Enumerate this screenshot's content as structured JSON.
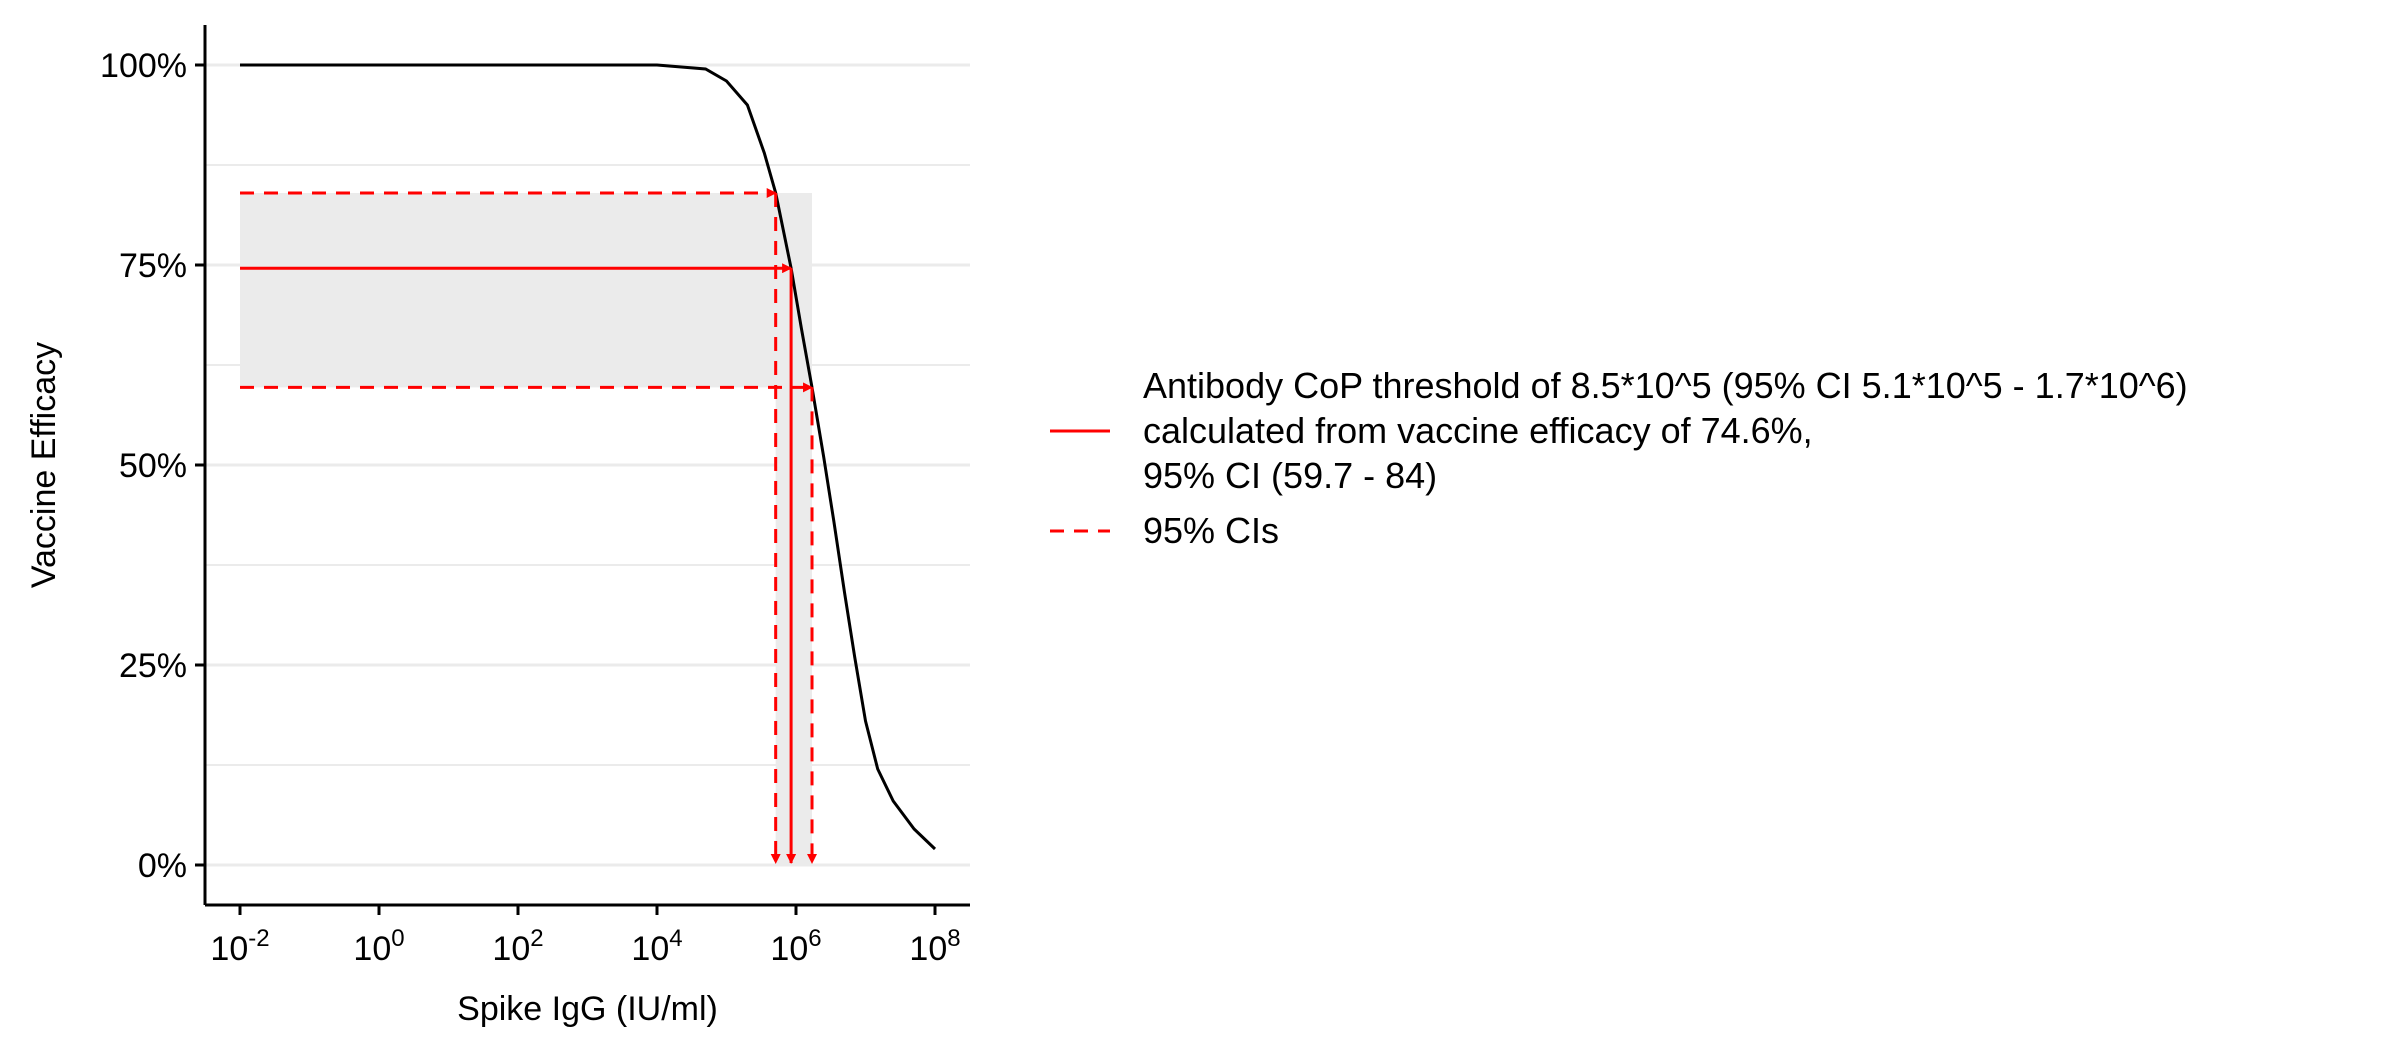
{
  "chart_data": {
    "type": "line",
    "xlabel": "Spike IgG (IU/ml)",
    "ylabel": "Vaccine Efficacy",
    "x_scale": "log10",
    "xlim": [
      0.01,
      100000000
    ],
    "ylim": [
      0,
      1
    ],
    "x_ticks": [
      {
        "value": 0.01,
        "base": "10",
        "exp": "-2"
      },
      {
        "value": 1,
        "base": "10",
        "exp": "0"
      },
      {
        "value": 100,
        "base": "10",
        "exp": "2"
      },
      {
        "value": 10000,
        "base": "10",
        "exp": "4"
      },
      {
        "value": 1000000,
        "base": "10",
        "exp": "6"
      },
      {
        "value": 100000000,
        "base": "10",
        "exp": "8"
      }
    ],
    "y_ticks": [
      {
        "value": 0,
        "label": "0%"
      },
      {
        "value": 0.25,
        "label": "25%"
      },
      {
        "value": 0.5,
        "label": "50%"
      },
      {
        "value": 0.75,
        "label": "75%"
      },
      {
        "value": 1,
        "label": "100%"
      }
    ],
    "grid": "horizontal major and minor",
    "efficacy_curve": {
      "color": "#000000",
      "points": [
        [
          0.01,
          1.0
        ],
        [
          10000,
          1.0
        ],
        [
          50000,
          0.995
        ],
        [
          100000,
          0.98
        ],
        [
          200000,
          0.95
        ],
        [
          350000,
          0.89
        ],
        [
          510000,
          0.84
        ],
        [
          850000,
          0.746
        ],
        [
          1200000,
          0.67
        ],
        [
          1700000,
          0.597
        ],
        [
          2500000,
          0.51
        ],
        [
          3500000,
          0.43
        ],
        [
          5000000,
          0.34
        ],
        [
          7000000,
          0.26
        ],
        [
          10000000,
          0.18
        ],
        [
          15000000,
          0.12
        ],
        [
          25000000,
          0.08
        ],
        [
          50000000,
          0.045
        ],
        [
          100000000,
          0.02
        ]
      ]
    },
    "threshold": {
      "x": 850000,
      "x_lower": 510000,
      "x_upper": 1700000,
      "efficacy": 0.746,
      "efficacy_lower": 0.597,
      "efficacy_upper": 0.84,
      "color": "#ff0000",
      "band_color": "#ebebeb"
    },
    "legend": {
      "placement": "right",
      "entries": [
        {
          "style": "solid",
          "lines": [
            "Antibody CoP threshold of 8.5*10^5 (95% CI 5.1*10^5 - 1.7*10^6)",
            "calculated from vaccine efficacy of 74.6%,",
            "95% CI (59.7 - 84)"
          ]
        },
        {
          "style": "dashed",
          "lines": [
            "95% CIs"
          ]
        }
      ]
    }
  }
}
